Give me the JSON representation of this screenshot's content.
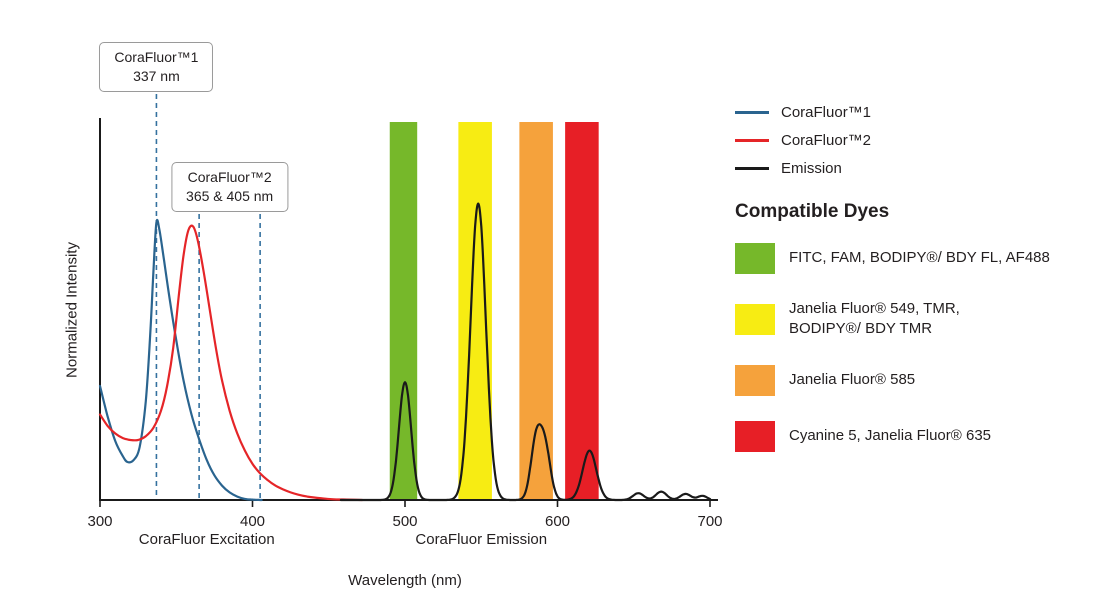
{
  "page": {
    "background": "#ffffff"
  },
  "colors": {
    "axis": "#1a1a1a",
    "text": "#231f20",
    "marker_line": "#35719f",
    "callout_border": "#9a9a9a"
  },
  "axes": {
    "x_label": "Wavelength (nm)",
    "y_label": "Normalized Intensity",
    "x_ticks": [
      300,
      400,
      500,
      600,
      700
    ],
    "section_labels": [
      {
        "text": "CoraFluor Excitation",
        "center_nm": 370
      },
      {
        "text": "CoraFluor Emission",
        "center_nm": 550
      }
    ]
  },
  "annotations": {
    "callout1": {
      "line1": "CoraFluor™1",
      "line2": "337 nm",
      "marker_nm": [
        337
      ]
    },
    "callout2": {
      "line1": "CoraFluor™2",
      "line2": "365 & 405 nm",
      "marker_nm": [
        365,
        405
      ]
    }
  },
  "legend": {
    "items": [
      {
        "label": "CoraFluor™1",
        "color": "#2a648f"
      },
      {
        "label": "CoraFluor™2",
        "color": "#e52528"
      },
      {
        "label": "Emission",
        "color": "#1a1a1a"
      }
    ]
  },
  "compatible_dyes": {
    "title": "Compatible Dyes",
    "items": [
      {
        "color": "#76b82a",
        "label": "FITC, FAM, BODIPY®/ BDY FL, AF488"
      },
      {
        "color": "#f7ec13",
        "label": "Janelia Fluor® 549, TMR,\nBODIPY®/ BDY TMR"
      },
      {
        "color": "#f5a23c",
        "label": "Janelia Fluor® 585"
      },
      {
        "color": "#e71f26",
        "label": "Cyanine 5, Janelia Fluor® 635"
      }
    ]
  },
  "chart_data": {
    "type": "line",
    "title": "",
    "xlabel": "Wavelength (nm)",
    "ylabel": "Normalized Intensity",
    "xlim": [
      300,
      700
    ],
    "ylim": [
      0,
      1.0
    ],
    "grid": false,
    "legend_position": "right",
    "excitation_markers_nm": [
      337,
      365,
      405
    ],
    "emission_bands": [
      {
        "range_nm": [
          490,
          508
        ],
        "color": "#76b82a",
        "dyes": "FITC, FAM, BODIPY®/ BDY FL, AF488"
      },
      {
        "range_nm": [
          535,
          557
        ],
        "color": "#f7ec13",
        "dyes": "Janelia Fluor® 549, TMR, BODIPY®/ BDY TMR"
      },
      {
        "range_nm": [
          575,
          597
        ],
        "color": "#f5a23c",
        "dyes": "Janelia Fluor® 585"
      },
      {
        "range_nm": [
          605,
          627
        ],
        "color": "#e71f26",
        "dyes": "Cyanine 5, Janelia Fluor® 635"
      }
    ],
    "series": [
      {
        "name": "CoraFluor™1",
        "role": "excitation",
        "color": "#2a648f",
        "points": [
          [
            300,
            0.3
          ],
          [
            305,
            0.22
          ],
          [
            310,
            0.155
          ],
          [
            315,
            0.115
          ],
          [
            318,
            0.1
          ],
          [
            322,
            0.105
          ],
          [
            326,
            0.14
          ],
          [
            330,
            0.26
          ],
          [
            333,
            0.44
          ],
          [
            335,
            0.6
          ],
          [
            337,
            0.73
          ],
          [
            339,
            0.71
          ],
          [
            342,
            0.63
          ],
          [
            346,
            0.52
          ],
          [
            350,
            0.42
          ],
          [
            355,
            0.31
          ],
          [
            360,
            0.225
          ],
          [
            365,
            0.16
          ],
          [
            370,
            0.105
          ],
          [
            375,
            0.065
          ],
          [
            380,
            0.038
          ],
          [
            385,
            0.02
          ],
          [
            390,
            0.009
          ],
          [
            395,
            0.003
          ],
          [
            400,
            0.001
          ],
          [
            406,
            0.0
          ]
        ]
      },
      {
        "name": "CoraFluor™2",
        "role": "excitation",
        "color": "#e52528",
        "points": [
          [
            300,
            0.225
          ],
          [
            305,
            0.195
          ],
          [
            310,
            0.175
          ],
          [
            315,
            0.163
          ],
          [
            320,
            0.158
          ],
          [
            325,
            0.158
          ],
          [
            330,
            0.168
          ],
          [
            335,
            0.19
          ],
          [
            340,
            0.235
          ],
          [
            344,
            0.3
          ],
          [
            348,
            0.4
          ],
          [
            352,
            0.55
          ],
          [
            355,
            0.65
          ],
          [
            358,
            0.71
          ],
          [
            361,
            0.72
          ],
          [
            364,
            0.685
          ],
          [
            368,
            0.6
          ],
          [
            372,
            0.5
          ],
          [
            376,
            0.4
          ],
          [
            380,
            0.315
          ],
          [
            385,
            0.235
          ],
          [
            390,
            0.175
          ],
          [
            395,
            0.13
          ],
          [
            400,
            0.095
          ],
          [
            405,
            0.07
          ],
          [
            410,
            0.052
          ],
          [
            415,
            0.038
          ],
          [
            420,
            0.028
          ],
          [
            425,
            0.02
          ],
          [
            430,
            0.014
          ],
          [
            436,
            0.009
          ],
          [
            444,
            0.005
          ],
          [
            452,
            0.002
          ],
          [
            462,
            0.001
          ],
          [
            472,
            0.0
          ]
        ]
      },
      {
        "name": "Emission",
        "role": "emission",
        "color": "#1a1a1a",
        "sample_range_nm": [
          458,
          700
        ],
        "peaks": [
          {
            "center_nm": 500,
            "height": 0.31,
            "sigma_nm": 4
          },
          {
            "center_nm": 548,
            "height": 0.78,
            "sigma_nm": 5
          },
          {
            "center_nm": 586,
            "height": 0.155,
            "sigma_nm": 3.5
          },
          {
            "center_nm": 592,
            "height": 0.13,
            "sigma_nm": 3.5
          },
          {
            "center_nm": 621,
            "height": 0.13,
            "sigma_nm": 4.5
          },
          {
            "center_nm": 653,
            "height": 0.018,
            "sigma_nm": 3.5
          },
          {
            "center_nm": 668,
            "height": 0.022,
            "sigma_nm": 3.5
          },
          {
            "center_nm": 684,
            "height": 0.016,
            "sigma_nm": 3.5
          },
          {
            "center_nm": 695,
            "height": 0.011,
            "sigma_nm": 3
          }
        ]
      }
    ]
  }
}
